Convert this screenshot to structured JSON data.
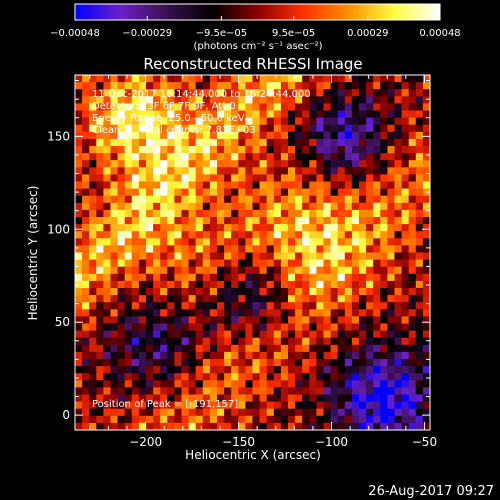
{
  "chart_data": {
    "type": "heatmap",
    "title": "Reconstructed RHESSI Image",
    "xlabel": "Heliocentric X (arcsec)",
    "ylabel": "Heliocentric Y (arcsec)",
    "xlim": [
      -238,
      -47
    ],
    "ylim": [
      -8,
      183
    ],
    "x_ticks": [
      -200,
      -150,
      -100,
      -50
    ],
    "x_tick_labels": [
      "−200",
      "−150",
      "−100",
      "−50"
    ],
    "y_ticks": [
      0,
      50,
      100,
      150
    ],
    "y_tick_labels": [
      "0",
      "50",
      "100",
      "150"
    ],
    "colorbar": {
      "min": -0.00048,
      "max": 0.00048,
      "tick_values": [
        -0.00048,
        -0.00029,
        -9.5e-05,
        9.5e-05,
        0.00029,
        0.00048
      ],
      "tick_labels": [
        "−0.00048",
        "−0.00029",
        "−9.5e−05",
        "9.5e−05",
        "0.00029",
        "0.00048"
      ],
      "units": "(photons cm⁻² s⁻¹ asec⁻²)",
      "colors": [
        "#0000ff",
        "#6a20c8",
        "#3a1050",
        "#000000",
        "#8b0000",
        "#ff3000",
        "#ff9000",
        "#ffff40",
        "#ffffff"
      ]
    },
    "annotations": [
      "11-Dec-2017 16:14:44.000 to 16:24:44.000",
      "Detectors: 3F 6F 7F 9F, Att 0",
      "Energy Range: 25.0 - 50.0 keV",
      "Clean      Total counts: 7.81E+03"
    ],
    "peak_label": "Position of Peak = [-191,157]",
    "peak_position": [
      -191,
      157
    ],
    "grid": false
  },
  "footer_timestamp": "26-Aug-2017 09:27"
}
